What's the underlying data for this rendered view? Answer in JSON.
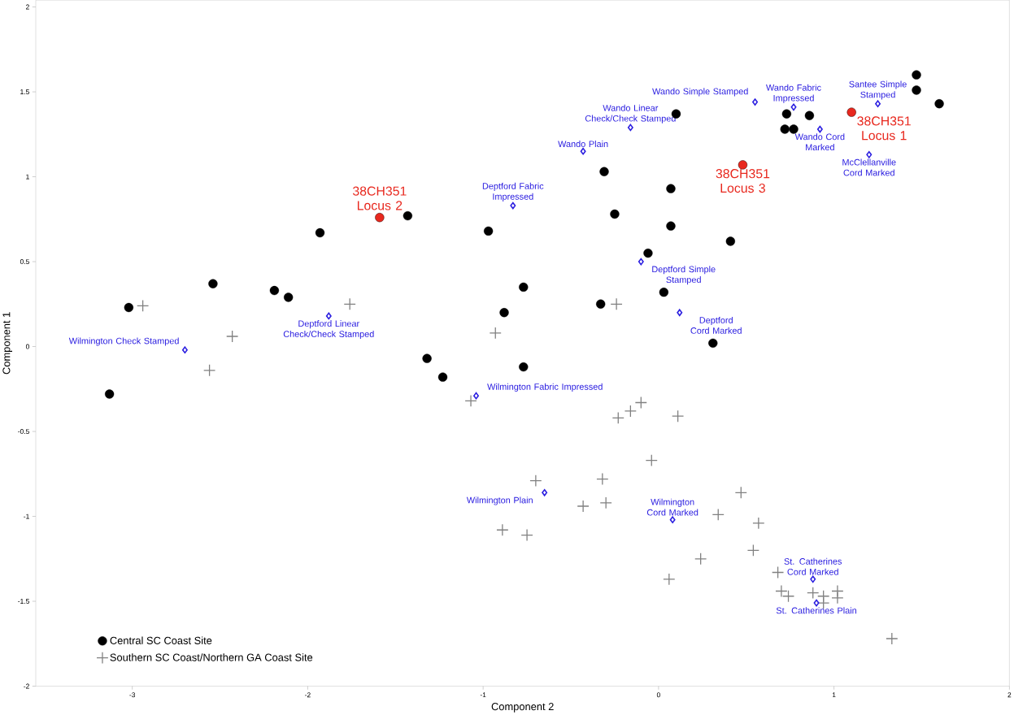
{
  "chart_data": {
    "type": "scatter",
    "xlabel": "Component 2",
    "ylabel": "Component 1",
    "xlim": [
      -3.55,
      2
    ],
    "ylim": [
      -2,
      2.04
    ],
    "xticks": [
      -3,
      -2,
      -1,
      0,
      1,
      2
    ],
    "yticks": [
      -2,
      -1.5,
      -1,
      -0.5,
      0,
      0.5,
      1,
      1.5,
      2
    ],
    "grid": false,
    "legend": "bottom left",
    "series": [
      {
        "name": "Central SC Coast Site",
        "color": "#000000",
        "marker": "circle",
        "x": [
          1.47,
          1.47,
          1.6,
          0.73,
          0.86,
          0.72,
          0.77,
          0.1,
          -0.31,
          0.07,
          -0.25,
          0.07,
          0.41,
          -0.06,
          -0.97,
          -1.43,
          -1.93,
          -2.54,
          -2.19,
          -2.11,
          -3.02,
          -3.13,
          -1.32,
          -1.23,
          -0.77,
          -0.88,
          -0.77,
          -0.33,
          0.03,
          0.31
        ],
        "values": [
          1.6,
          1.51,
          1.43,
          1.37,
          1.36,
          1.28,
          1.28,
          1.37,
          1.03,
          0.93,
          0.78,
          0.71,
          0.62,
          0.55,
          0.68,
          0.77,
          0.67,
          0.37,
          0.33,
          0.29,
          0.23,
          -0.28,
          -0.07,
          -0.18,
          0.35,
          0.2,
          -0.12,
          0.25,
          0.32,
          0.02
        ]
      },
      {
        "name": "Southern SC Coast/Northern GA Coast Site",
        "color": "#808080",
        "marker": "cross",
        "x": [
          -2.94,
          -2.43,
          -2.56,
          -1.76,
          -0.93,
          -1.07,
          -0.24,
          -0.23,
          -0.16,
          -0.1,
          0.11,
          -0.04,
          -0.7,
          -0.32,
          -0.3,
          -0.43,
          -0.89,
          -0.75,
          0.06,
          0.24,
          0.34,
          0.47,
          0.57,
          0.54,
          0.68,
          0.7,
          0.74,
          0.88,
          0.94,
          0.94,
          1.02,
          1.02,
          1.33
        ],
        "values": [
          0.24,
          0.06,
          -0.14,
          0.25,
          0.08,
          -0.32,
          0.25,
          -0.42,
          -0.38,
          -0.33,
          -0.41,
          -0.67,
          -0.79,
          -0.78,
          -0.92,
          -0.94,
          -1.08,
          -1.11,
          -1.37,
          -1.25,
          -0.99,
          -0.86,
          -1.04,
          -1.2,
          -1.33,
          -1.44,
          -1.47,
          -1.45,
          -1.47,
          -1.51,
          -1.44,
          -1.48,
          -1.72
        ]
      },
      {
        "color": "#e8281e",
        "marker": "circle",
        "x": [
          -1.59,
          0.48,
          1.1
        ],
        "values": [
          0.76,
          1.07,
          1.38
        ]
      },
      {
        "color": "#2b1ee0",
        "marker": "diamond",
        "x": [
          0.55,
          0.77,
          0.92,
          1.25,
          1.2,
          -0.16,
          -0.43,
          -0.83,
          -0.1,
          0.12,
          -1.88,
          -2.7,
          -1.04,
          -0.65,
          0.08,
          0.88,
          0.9
        ],
        "values": [
          1.44,
          1.41,
          1.28,
          1.43,
          1.13,
          1.29,
          1.15,
          0.83,
          0.5,
          0.2,
          0.18,
          -0.02,
          -0.29,
          -0.86,
          -1.02,
          -1.37,
          -1.51
        ]
      }
    ],
    "annotations": [
      {
        "text": "38CH351 Locus 2",
        "x": -1.59,
        "y": 0.76
      },
      {
        "text": "38CH351 Locus 3",
        "x": 0.48,
        "y": 1.07
      },
      {
        "text": "38CH351 Locus 1",
        "x": 1.1,
        "y": 1.38
      },
      {
        "text": "Wando Simple Stamped",
        "x": 0.55,
        "y": 1.44
      },
      {
        "text": "Wando Fabric Impressed",
        "x": 0.77,
        "y": 1.41
      },
      {
        "text": "Wando Cord Marked",
        "x": 0.92,
        "y": 1.28
      },
      {
        "text": "Santee Simple Stamped",
        "x": 1.25,
        "y": 1.43
      },
      {
        "text": "McClellanville Cord Marked",
        "x": 1.2,
        "y": 1.13
      },
      {
        "text": "Wando Linear Check/Check Stamped",
        "x": -0.16,
        "y": 1.29
      },
      {
        "text": "Wando Plain",
        "x": -0.43,
        "y": 1.15
      },
      {
        "text": "Deptford Fabric Impressed",
        "x": -0.83,
        "y": 0.83
      },
      {
        "text": "Deptford Simple Stamped",
        "x": -0.1,
        "y": 0.5
      },
      {
        "text": "Deptford Cord Marked",
        "x": 0.12,
        "y": 0.2
      },
      {
        "text": "Deptford Linear Check/Check Stamped",
        "x": -1.88,
        "y": 0.18
      },
      {
        "text": "Wilmington Check Stamped",
        "x": -2.7,
        "y": -0.02
      },
      {
        "text": "Wilmington Fabric Impressed",
        "x": -1.04,
        "y": -0.29
      },
      {
        "text": "Wilmington Plain",
        "x": -0.65,
        "y": -0.86
      },
      {
        "text": "Wilmington Cord Marked",
        "x": 0.08,
        "y": -1.02
      },
      {
        "text": "St. Catherines Cord Marked",
        "x": 0.88,
        "y": -1.37
      },
      {
        "text": "St. Catherines Plain",
        "x": 0.9,
        "y": -1.51
      }
    ]
  }
}
